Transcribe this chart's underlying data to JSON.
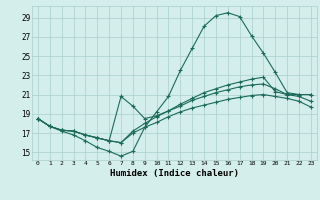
{
  "xlabel": "Humidex (Indice chaleur)",
  "bg_color": "#d4eeeb",
  "grid_color": "#aacfcb",
  "line_color": "#1a6b5a",
  "x_ticks": [
    0,
    1,
    2,
    3,
    4,
    5,
    6,
    7,
    8,
    9,
    10,
    11,
    12,
    13,
    14,
    15,
    16,
    17,
    18,
    19,
    20,
    21,
    22,
    23
  ],
  "y_ticks": [
    15,
    17,
    19,
    21,
    23,
    25,
    27,
    29
  ],
  "ylim": [
    14.2,
    30.2
  ],
  "xlim": [
    -0.5,
    23.5
  ],
  "line1_y": [
    18.5,
    17.7,
    17.2,
    16.8,
    16.2,
    15.5,
    15.1,
    14.6,
    15.1,
    17.6,
    19.2,
    20.8,
    23.5,
    25.8,
    28.1,
    29.2,
    29.5,
    29.1,
    27.1,
    25.3,
    23.3,
    21.2,
    21.0,
    21.0
  ],
  "line2_y": [
    18.5,
    17.7,
    17.3,
    17.2,
    16.8,
    16.5,
    16.2,
    20.8,
    19.8,
    18.5,
    18.8,
    19.3,
    20.0,
    20.6,
    21.2,
    21.6,
    22.0,
    22.3,
    22.6,
    22.8,
    21.3,
    21.0,
    21.0,
    21.0
  ],
  "line3_y": [
    18.5,
    17.7,
    17.3,
    17.2,
    16.8,
    16.5,
    16.2,
    16.0,
    17.2,
    18.0,
    18.7,
    19.3,
    19.8,
    20.4,
    20.8,
    21.2,
    21.5,
    21.8,
    22.0,
    22.1,
    21.6,
    21.0,
    20.8,
    20.3
  ],
  "line4_y": [
    18.5,
    17.7,
    17.3,
    17.2,
    16.8,
    16.5,
    16.2,
    16.0,
    17.0,
    17.6,
    18.1,
    18.7,
    19.2,
    19.6,
    19.9,
    20.2,
    20.5,
    20.7,
    20.9,
    21.0,
    20.8,
    20.6,
    20.3,
    19.7
  ]
}
